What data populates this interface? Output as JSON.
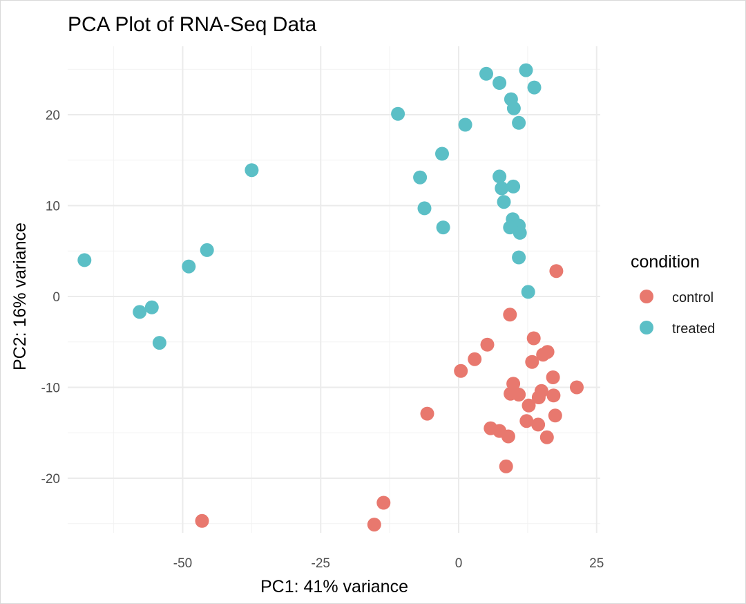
{
  "chart_data": {
    "type": "scatter",
    "title": "PCA Plot of RNA-Seq Data",
    "xlabel": "PC1: 41% variance",
    "ylabel": "PC2: 16% variance",
    "xlim": [
      -70,
      26
    ],
    "ylim": [
      -26,
      26
    ],
    "x_ticks": [
      -50,
      -25,
      0,
      25
    ],
    "y_ticks": [
      -20,
      -10,
      0,
      10,
      20
    ],
    "grid": true,
    "legend": {
      "title": "condition",
      "placement": "right",
      "entries": [
        {
          "name": "control",
          "color": "#F8766D"
        },
        {
          "name": "treated",
          "color": "#00BFC4"
        }
      ]
    },
    "series": [
      {
        "name": "control",
        "color": "#E8786E",
        "points": [
          [
            17.7,
            2.8
          ],
          [
            9.3,
            -2.0
          ],
          [
            13.6,
            -4.6
          ],
          [
            5.2,
            -5.3
          ],
          [
            16.1,
            -6.1
          ],
          [
            15.3,
            -6.4
          ],
          [
            2.9,
            -6.9
          ],
          [
            13.3,
            -7.2
          ],
          [
            0.4,
            -8.2
          ],
          [
            17.1,
            -8.9
          ],
          [
            9.9,
            -9.6
          ],
          [
            21.4,
            -10.0
          ],
          [
            15.0,
            -10.4
          ],
          [
            9.4,
            -10.7
          ],
          [
            10.9,
            -10.8
          ],
          [
            17.2,
            -10.9
          ],
          [
            14.5,
            -11.1
          ],
          [
            12.7,
            -12.0
          ],
          [
            -5.7,
            -12.9
          ],
          [
            17.5,
            -13.1
          ],
          [
            12.3,
            -13.7
          ],
          [
            14.4,
            -14.1
          ],
          [
            5.8,
            -14.5
          ],
          [
            7.4,
            -14.8
          ],
          [
            9.0,
            -15.4
          ],
          [
            16.0,
            -15.5
          ],
          [
            8.6,
            -18.7
          ],
          [
            -13.6,
            -22.7
          ],
          [
            -46.5,
            -24.7
          ],
          [
            -15.3,
            -25.1
          ]
        ]
      },
      {
        "name": "treated",
        "color": "#5BBFC6",
        "points": [
          [
            12.2,
            24.9
          ],
          [
            5.0,
            24.5
          ],
          [
            7.4,
            23.5
          ],
          [
            13.7,
            23.0
          ],
          [
            9.5,
            21.7
          ],
          [
            10.0,
            20.7
          ],
          [
            -11.0,
            20.1
          ],
          [
            1.2,
            18.9
          ],
          [
            10.9,
            19.1
          ],
          [
            -3.0,
            15.7
          ],
          [
            -7.0,
            13.1
          ],
          [
            7.4,
            13.2
          ],
          [
            -37.5,
            13.9
          ],
          [
            7.8,
            11.9
          ],
          [
            9.9,
            12.1
          ],
          [
            8.2,
            10.4
          ],
          [
            -6.2,
            9.7
          ],
          [
            9.8,
            8.5
          ],
          [
            10.9,
            7.8
          ],
          [
            9.3,
            7.6
          ],
          [
            -2.8,
            7.6
          ],
          [
            11.1,
            7.0
          ],
          [
            -45.6,
            5.1
          ],
          [
            10.9,
            4.3
          ],
          [
            -67.8,
            4.0
          ],
          [
            -48.9,
            3.3
          ],
          [
            12.6,
            0.5
          ],
          [
            -55.6,
            -1.2
          ],
          [
            -57.8,
            -1.7
          ],
          [
            -54.2,
            -5.1
          ]
        ]
      }
    ]
  }
}
